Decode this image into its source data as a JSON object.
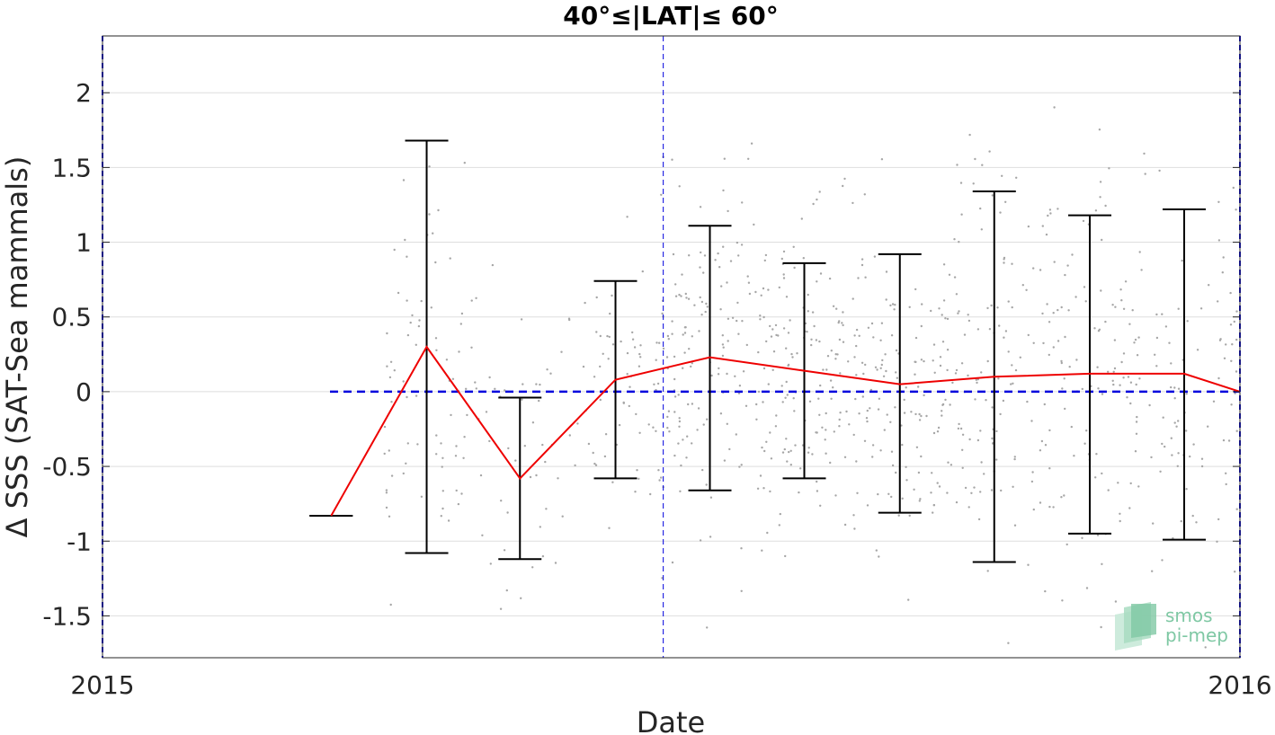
{
  "chart_data": {
    "type": "line",
    "title": "40°≤|LAT|≤ 60°",
    "xlabel": "Date",
    "ylabel": "Δ SSS (SAT-Sea mammals)",
    "x_ticks": [
      {
        "value": 2015.0,
        "label": "2015"
      },
      {
        "value": 2016.0,
        "label": "2016"
      }
    ],
    "xlim": [
      2015.0,
      2016.0
    ],
    "ylim": [
      -1.78,
      2.38
    ],
    "y_ticks": [
      {
        "value": 2,
        "label": "2"
      },
      {
        "value": 1.5,
        "label": "1.5"
      },
      {
        "value": 1,
        "label": "1"
      },
      {
        "value": 0.5,
        "label": "0.5"
      },
      {
        "value": 0,
        "label": "0"
      },
      {
        "value": -0.5,
        "label": "-0.5"
      },
      {
        "value": -1,
        "label": "-1"
      },
      {
        "value": -1.5,
        "label": "-1.5"
      }
    ],
    "grid": true,
    "reference_line": {
      "y": 0,
      "x_from": 2015.2,
      "x_to": 2016.0,
      "color": "#0000dd",
      "style": "dashed"
    },
    "vertical_lines": [
      {
        "x": 2015.0,
        "color": "#0000dd"
      },
      {
        "x": 2015.493,
        "color": "#0000dd"
      },
      {
        "x": 2016.0,
        "color": "#0000dd"
      }
    ],
    "series": [
      {
        "type": "line",
        "color": "#ee0000",
        "x": [
          2015.201,
          2015.285,
          2015.367,
          2015.451,
          2015.534,
          2015.617,
          2015.701,
          2015.784,
          2015.868,
          2015.951,
          2016.0
        ],
        "y": [
          -0.83,
          0.3,
          -0.58,
          0.08,
          0.23,
          0.14,
          0.05,
          0.1,
          0.12,
          0.12,
          0.0
        ]
      },
      {
        "type": "errorbar",
        "color": "#000000",
        "x": [
          2015.201,
          2015.285,
          2015.367,
          2015.451,
          2015.534,
          2015.617,
          2015.701,
          2015.784,
          2015.868,
          2015.951
        ],
        "lower": [
          -0.83,
          -1.08,
          -1.12,
          -0.58,
          -0.66,
          -0.58,
          -0.81,
          -1.14,
          -0.95,
          -0.99
        ],
        "upper": [
          -0.83,
          1.68,
          -0.04,
          0.74,
          1.11,
          0.86,
          0.92,
          1.34,
          1.18,
          1.22
        ]
      }
    ],
    "scatter_points": {
      "color": "#a6a6a6",
      "seed": 7,
      "clusters": [
        {
          "x_from": 2015.245,
          "x_to": 2015.325,
          "count": 75,
          "y_mean": 0.1,
          "y_sd": 0.85
        },
        {
          "x_from": 2015.325,
          "x_to": 2015.41,
          "count": 45,
          "y_mean": -0.3,
          "y_sd": 0.75
        },
        {
          "x_from": 2015.41,
          "x_to": 2015.49,
          "count": 65,
          "y_mean": 0.05,
          "y_sd": 0.65
        },
        {
          "x_from": 2015.49,
          "x_to": 2015.575,
          "count": 140,
          "y_mean": 0.2,
          "y_sd": 0.85
        },
        {
          "x_from": 2015.575,
          "x_to": 2015.66,
          "count": 150,
          "y_mean": 0.15,
          "y_sd": 0.75
        },
        {
          "x_from": 2015.66,
          "x_to": 2015.745,
          "count": 140,
          "y_mean": 0.05,
          "y_sd": 0.8
        },
        {
          "x_from": 2015.745,
          "x_to": 2015.83,
          "count": 120,
          "y_mean": 0.1,
          "y_sd": 0.95
        },
        {
          "x_from": 2015.83,
          "x_to": 2015.91,
          "count": 110,
          "y_mean": 0.1,
          "y_sd": 0.95
        },
        {
          "x_from": 2015.91,
          "x_to": 2015.998,
          "count": 90,
          "y_mean": 0.1,
          "y_sd": 0.95
        }
      ]
    }
  },
  "logo": {
    "line1": "smos",
    "line2": "pi-mep"
  }
}
